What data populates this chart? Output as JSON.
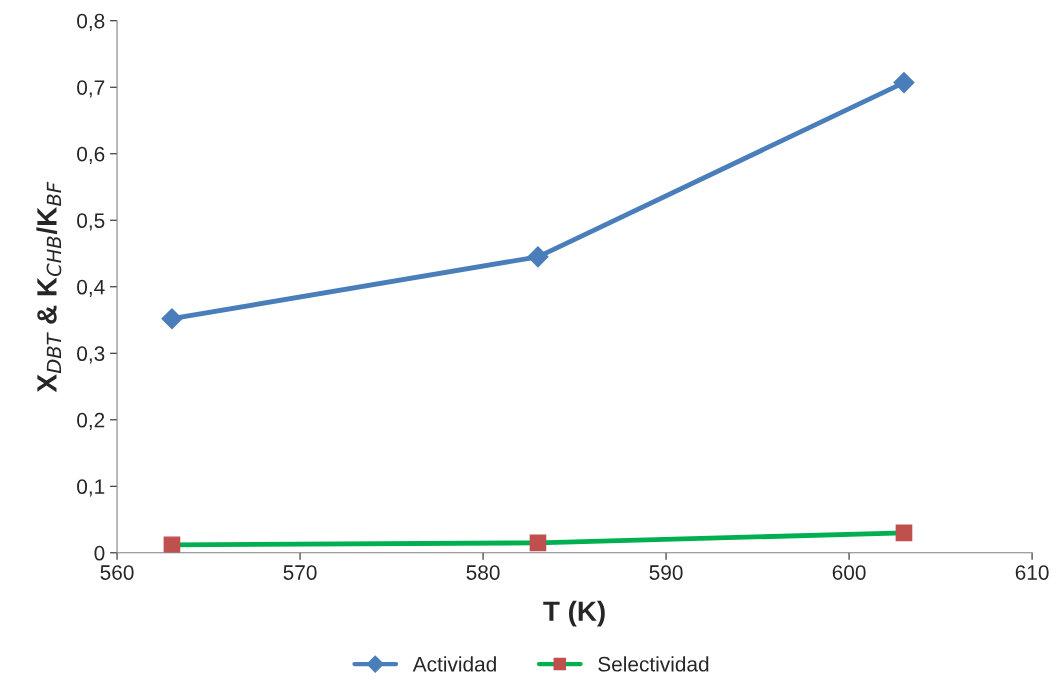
{
  "chart_data": {
    "type": "line",
    "xlabel": "T (K)",
    "ylabel": "X$_{DBT}$ & K$_{CHB}$/K$_{BF}$",
    "x": [
      563,
      583,
      603
    ],
    "series": [
      {
        "name": "Actividad",
        "color": "#4a7ebb",
        "colors": [
          "#4a7ebb",
          "#4a7ebb",
          "#4a7ebb"
        ],
        "marker": "diamond",
        "values": [
          0.352,
          0.445,
          0.707
        ]
      },
      {
        "name": "Selectividad",
        "color": "#00b050",
        "colors": [
          "#c0504d",
          "#c0504d",
          "#c0504d"
        ],
        "marker": "square",
        "values": [
          0.012,
          0.015,
          0.03
        ]
      }
    ],
    "xlim": [
      560,
      610
    ],
    "xticks": [
      560,
      570,
      580,
      590,
      600,
      610
    ],
    "ylim": [
      0,
      0.8
    ],
    "yticks": [
      {
        "value": 0,
        "label": "0"
      },
      {
        "value": 0.1,
        "label": "0,1"
      },
      {
        "value": 0.2,
        "label": "0,2"
      },
      {
        "value": 0.3,
        "label": "0,3"
      },
      {
        "value": 0.4,
        "label": "0,4"
      },
      {
        "value": 0.5,
        "label": "0,5"
      },
      {
        "value": 0.6,
        "label": "0,6"
      },
      {
        "value": 0.7,
        "label": "0,7"
      },
      {
        "value": 0.8,
        "label": "0,8"
      }
    ],
    "grid": false,
    "legend": "bottom",
    "line_style": "solid"
  }
}
